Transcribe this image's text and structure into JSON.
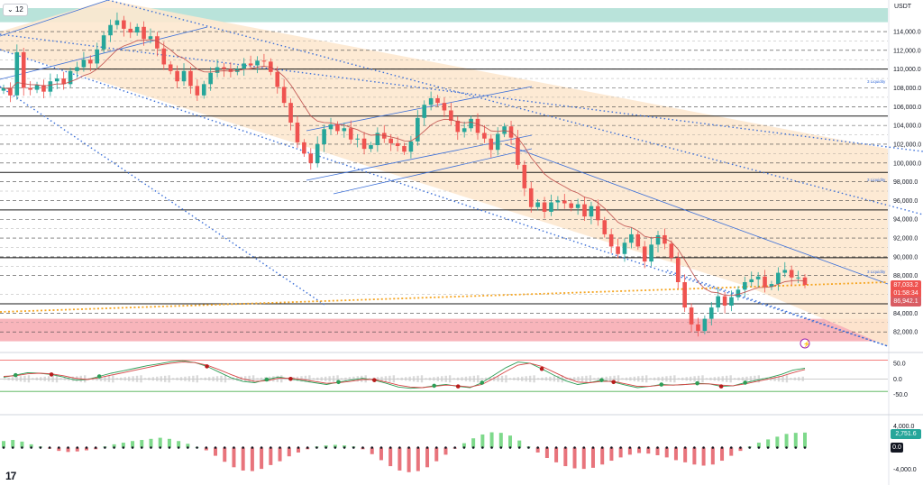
{
  "header": {
    "interval": "12",
    "currency": "USDT"
  },
  "price_badges": {
    "last": "87,033.2",
    "countdown": "01:58:34",
    "ma": "86,942.1",
    "color_last": "#ef5350",
    "color_ma": "#ef5350"
  },
  "oscillator_badges": {
    "value": "2,751.6",
    "zero": "0.0",
    "color_value": "#26a69a",
    "color_zero": "#131722"
  },
  "annotations": {
    "liquidity": "3 Liquidity"
  },
  "logo": {
    "text": "17"
  },
  "colors": {
    "up": "#26a69a",
    "down": "#ef5350",
    "channel_fill": "#fde8cf",
    "top_zone": "#b9e3da",
    "bottom_zone": "#f7a8af",
    "trend_blue": "#3b6fd8",
    "orange_trend": "#f5a623",
    "hist_up": "#7ed98b",
    "hist_down": "#e8747c"
  },
  "chart_data": [
    {
      "type": "candlestick",
      "title": "",
      "y_ticks": [
        "114,000.0",
        "112,000.0",
        "110,000.0",
        "108,000.0",
        "106,000.0",
        "104,000.0",
        "102,000.0",
        "100,000.0",
        "98,000.0",
        "96,000.0",
        "94,000.0",
        "92,000.0",
        "90,000.0",
        "88,000.0",
        "84,000.0",
        "82,000.0"
      ],
      "ylim": [
        80000,
        116500
      ],
      "support_resistance_solid": [
        110000,
        105000,
        99000,
        95000,
        89900,
        85000
      ],
      "zones": {
        "top": [
          115000,
          116500
        ],
        "bottom": [
          81000,
          83400
        ]
      },
      "close_path": [
        108000,
        107200,
        111800,
        108000,
        107800,
        108300,
        107600,
        108700,
        109000,
        108400,
        109800,
        110200,
        111000,
        110600,
        112100,
        113600,
        114700,
        115200,
        114300,
        113900,
        114500,
        113200,
        113500,
        112200,
        110500,
        109800,
        108700,
        109800,
        108200,
        107200,
        108400,
        109600,
        110200,
        110000,
        109700,
        110000,
        110600,
        110400,
        110900,
        110800,
        109700,
        108100,
        106400,
        104300,
        102200,
        101000,
        100000,
        102000,
        103600,
        104100,
        103400,
        103700,
        102500,
        102600,
        101500,
        101900,
        103200,
        102600,
        102100,
        101800,
        101200,
        102300,
        104800,
        106200,
        106900,
        106400,
        105600,
        104500,
        103300,
        103700,
        104700,
        103200,
        102600,
        101400,
        103100,
        103900,
        102700,
        99800,
        97300,
        95300,
        95800,
        94800,
        95800,
        96000,
        95700,
        95200,
        95600,
        94300,
        95400,
        93900,
        92400,
        91100,
        90300,
        91500,
        92400,
        91100,
        89500,
        91300,
        92300,
        91400,
        89900,
        87300,
        84600,
        82800,
        82100,
        83400,
        84600,
        85800,
        84800,
        85700,
        86500,
        87300,
        87600,
        87900,
        86800,
        87100,
        88300,
        88600,
        87800,
        87800,
        87000
      ]
    },
    {
      "type": "line",
      "title": "",
      "y_ticks": [
        "50.0",
        "0.0",
        "-50.0"
      ],
      "ylim": [
        -100,
        70
      ],
      "levels": [
        60,
        -40
      ],
      "series": [
        {
          "values": [
            5,
            12,
            20,
            18,
            14,
            6,
            -4,
            -2,
            8,
            18,
            26,
            34,
            42,
            48,
            55,
            58,
            52,
            40,
            22,
            4,
            -8,
            -12,
            -2,
            6,
            0,
            -6,
            -12,
            -18,
            -10,
            -4,
            2,
            -4,
            -14,
            -26,
            -30,
            -28,
            -22,
            -18,
            -24,
            -28,
            -12,
            12,
            36,
            54,
            50,
            32,
            12,
            -6,
            -18,
            -12,
            -4,
            -10,
            -20,
            -28,
            -24,
            -18,
            -20,
            -18,
            -14,
            -16,
            -24,
            -22,
            -12,
            -4,
            4,
            14,
            28,
            34
          ]
        },
        {
          "values": [
            8,
            10,
            16,
            18,
            16,
            10,
            2,
            -2,
            4,
            12,
            20,
            28,
            36,
            44,
            50,
            54,
            52,
            44,
            30,
            14,
            0,
            -8,
            -6,
            2,
            2,
            -2,
            -8,
            -14,
            -12,
            -8,
            -2,
            -2,
            -10,
            -20,
            -26,
            -28,
            -24,
            -20,
            -22,
            -26,
            -18,
            2,
            24,
            44,
            50,
            40,
            22,
            4,
            -10,
            -12,
            -8,
            -8,
            -16,
            -24,
            -24,
            -20,
            -20,
            -18,
            -16,
            -16,
            -20,
            -22,
            -16,
            -8,
            0,
            8,
            20,
            30
          ]
        }
      ]
    },
    {
      "type": "histogram",
      "title": "",
      "y_ticks": [
        "4,000.0",
        "-4,000.0"
      ],
      "ylim": [
        -5200,
        5200
      ],
      "values": [
        1200,
        1400,
        1100,
        600,
        200,
        -200,
        -600,
        -800,
        -700,
        -500,
        -300,
        200,
        600,
        900,
        1200,
        1400,
        1600,
        1800,
        1600,
        1200,
        700,
        100,
        -500,
        -1500,
        -2600,
        -3600,
        -4200,
        -4300,
        -3900,
        -3200,
        -2500,
        -1600,
        -900,
        -300,
        200,
        400,
        500,
        400,
        200,
        -300,
        -1200,
        -2300,
        -3400,
        -4200,
        -4500,
        -4300,
        -3600,
        -2500,
        -1300,
        -200,
        800,
        1700,
        2400,
        2800,
        2700,
        2200,
        1300,
        200,
        -900,
        -1900,
        -2700,
        -3400,
        -3800,
        -3900,
        -3700,
        -3100,
        -2400,
        -1800,
        -1300,
        -1000,
        -1100,
        -1400,
        -1800,
        -2300,
        -2700,
        -3100,
        -3300,
        -3100,
        -2400,
        -1500,
        -600,
        200,
        900,
        1500,
        2000,
        2500,
        2700,
        2751.6
      ]
    }
  ]
}
